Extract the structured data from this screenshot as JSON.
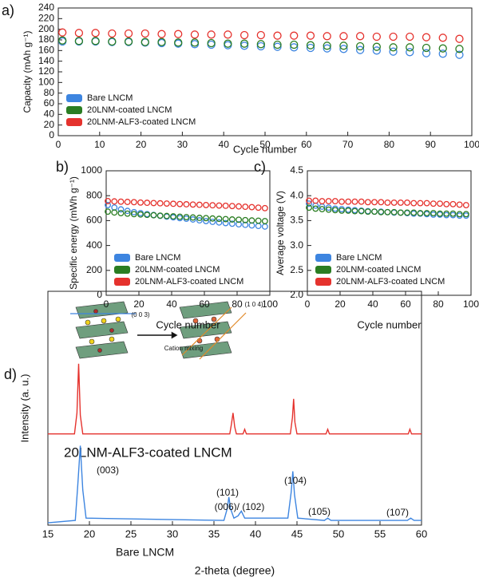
{
  "chart_data": [
    {
      "type": "scatter",
      "panel_label": "a)",
      "xlabel": "Cycle number",
      "ylabel": "Capacity (mAh g⁻¹)",
      "xlim": [
        0,
        100
      ],
      "xticks": [
        0,
        10,
        20,
        30,
        40,
        50,
        60,
        70,
        80,
        90,
        100
      ],
      "ylim": [
        0,
        240
      ],
      "yticks": [
        0,
        20,
        40,
        60,
        80,
        100,
        120,
        140,
        160,
        180,
        200,
        220,
        240
      ],
      "legend": "lower left",
      "x": [
        1,
        5,
        9,
        13,
        17,
        21,
        25,
        29,
        33,
        37,
        41,
        45,
        49,
        53,
        57,
        61,
        65,
        69,
        73,
        77,
        81,
        85,
        89,
        93,
        97
      ],
      "series": [
        {
          "name": "Bare LNCM",
          "color": "#3d85e0",
          "values": [
            177,
            177,
            177,
            176,
            176,
            175,
            174,
            173,
            172,
            171,
            170,
            169,
            168,
            167,
            166,
            165,
            164,
            163,
            161,
            160,
            158,
            157,
            155,
            154,
            152
          ]
        },
        {
          "name": "20LNM-coated LNCM",
          "color": "#2a7d22",
          "values": [
            179,
            178,
            178,
            177,
            177,
            176,
            176,
            175,
            175,
            174,
            173,
            173,
            172,
            171,
            171,
            170,
            169,
            169,
            168,
            167,
            166,
            166,
            165,
            164,
            163
          ]
        },
        {
          "name": "20LNM-ALF3-coated LNCM",
          "color": "#e5322d",
          "values": [
            194,
            193,
            193,
            192,
            192,
            192,
            191,
            191,
            190,
            190,
            190,
            189,
            189,
            188,
            188,
            188,
            187,
            187,
            187,
            186,
            186,
            186,
            185,
            184,
            182
          ]
        }
      ]
    },
    {
      "type": "scatter",
      "panel_label": "b)",
      "xlabel": "Cycle number",
      "ylabel": "Specific energy (mWh g⁻¹)",
      "xlim": [
        0,
        100
      ],
      "xticks": [
        0,
        20,
        40,
        60,
        80,
        100
      ],
      "ylim": [
        0,
        1000
      ],
      "yticks": [
        0,
        200,
        400,
        600,
        800,
        1000
      ],
      "legend": "lower left",
      "x": [
        1,
        5,
        9,
        13,
        17,
        21,
        25,
        29,
        33,
        37,
        41,
        45,
        49,
        53,
        57,
        61,
        65,
        69,
        73,
        77,
        81,
        85,
        89,
        93,
        97
      ],
      "series": [
        {
          "name": "Bare LNCM",
          "color": "#3d85e0",
          "values": [
            725,
            705,
            690,
            678,
            668,
            660,
            652,
            645,
            638,
            632,
            626,
            620,
            615,
            609,
            602,
            596,
            590,
            585,
            580,
            575,
            570,
            566,
            561,
            557,
            552
          ]
        },
        {
          "name": "20LNM-coated LNCM",
          "color": "#2a7d22",
          "values": [
            672,
            665,
            660,
            656,
            652,
            649,
            646,
            643,
            640,
            637,
            634,
            631,
            628,
            625,
            622,
            620,
            617,
            614,
            612,
            609,
            607,
            604,
            601,
            599,
            596
          ]
        },
        {
          "name": "20LNM-ALF3-coated LNCM",
          "color": "#e5322d",
          "values": [
            757,
            754,
            752,
            750,
            748,
            745,
            743,
            741,
            739,
            737,
            735,
            733,
            731,
            729,
            727,
            725,
            723,
            721,
            719,
            717,
            714,
            711,
            708,
            704,
            700
          ]
        }
      ]
    },
    {
      "type": "scatter",
      "panel_label": "c)",
      "xlabel": "Cycle number",
      "ylabel": "Average voltage (V)",
      "xlim": [
        0,
        100
      ],
      "xticks": [
        0,
        20,
        40,
        60,
        80,
        100
      ],
      "ylim": [
        2,
        4.5
      ],
      "yticks": [
        {
          "value": 2,
          "label": "2.0"
        },
        2.5,
        {
          "value": 3,
          "label": "3.0"
        },
        3.5,
        {
          "value": 4,
          "label": "4.0"
        },
        4.5
      ],
      "legend": "lower left",
      "x": [
        1,
        5,
        9,
        13,
        17,
        21,
        25,
        29,
        33,
        37,
        41,
        45,
        49,
        53,
        57,
        61,
        65,
        69,
        73,
        77,
        81,
        85,
        89,
        93,
        97
      ],
      "series": [
        {
          "name": "Bare LNCM",
          "color": "#3d85e0",
          "values": [
            3.84,
            3.8,
            3.78,
            3.76,
            3.74,
            3.73,
            3.72,
            3.71,
            3.7,
            3.69,
            3.68,
            3.68,
            3.67,
            3.66,
            3.66,
            3.65,
            3.64,
            3.64,
            3.63,
            3.62,
            3.62,
            3.61,
            3.61,
            3.6,
            3.6
          ]
        },
        {
          "name": "20LNM-coated LNCM",
          "color": "#2a7d22",
          "values": [
            3.76,
            3.74,
            3.73,
            3.72,
            3.71,
            3.7,
            3.7,
            3.69,
            3.69,
            3.68,
            3.68,
            3.67,
            3.67,
            3.67,
            3.66,
            3.66,
            3.66,
            3.65,
            3.65,
            3.65,
            3.64,
            3.64,
            3.64,
            3.63,
            3.63
          ]
        },
        {
          "name": "20LNM-ALF3-coated LNCM",
          "color": "#e5322d",
          "values": [
            3.9,
            3.9,
            3.89,
            3.89,
            3.89,
            3.88,
            3.88,
            3.88,
            3.88,
            3.87,
            3.87,
            3.87,
            3.86,
            3.86,
            3.86,
            3.86,
            3.85,
            3.85,
            3.85,
            3.84,
            3.84,
            3.83,
            3.83,
            3.82,
            3.81
          ]
        }
      ]
    },
    {
      "type": "line",
      "panel_label": "d)",
      "xlabel": "2-theta (degree)",
      "ylabel": "Intensity (a. u.)",
      "xlim": [
        15,
        60
      ],
      "xticks": [
        15,
        20,
        25,
        30,
        35,
        40,
        45,
        50,
        55,
        60
      ],
      "ylim": [
        0,
        100
      ],
      "series": [
        {
          "name": "20LNM-ALF3-coated LNCM",
          "color": "#e5322d",
          "x": [
            15,
            18.2,
            18.5,
            18.7,
            18.9,
            19.2,
            36.9,
            37.1,
            37.3,
            37.5,
            37.7,
            38.5,
            38.7,
            38.9,
            44.2,
            44.45,
            44.6,
            44.75,
            45.0,
            48.5,
            48.7,
            48.9,
            58.4,
            58.6,
            58.8,
            60
          ],
          "values": [
            39,
            39,
            48,
            69,
            47,
            39,
            39,
            43,
            48,
            42,
            39,
            39,
            41,
            39,
            39,
            46,
            54,
            44,
            39,
            39,
            41,
            39,
            39,
            41,
            39,
            39
          ]
        },
        {
          "name": "Bare LNCM",
          "color": "#3d85e0",
          "x": [
            15,
            18.3,
            18.6,
            18.9,
            19.2,
            19.6,
            36.2,
            36.6,
            36.8,
            37.0,
            37.4,
            37.9,
            38.3,
            38.7,
            43.9,
            44.3,
            44.5,
            44.7,
            45.1,
            48.3,
            48.7,
            49.1,
            58.3,
            58.7,
            59.1,
            60
          ],
          "values": [
            1,
            2,
            17,
            34,
            15,
            3,
            2,
            7,
            12,
            7,
            3,
            4,
            6,
            3,
            3,
            14,
            23,
            13,
            3,
            2,
            3,
            2,
            2,
            3,
            2,
            2
          ]
        }
      ],
      "annotations": [
        "(003)",
        "(101)",
        "(006)/ (102)",
        "(104)",
        "(105)",
        "(107)",
        "(0 0 3)",
        "(1 0 4)",
        "Cation mixing"
      ]
    }
  ]
}
